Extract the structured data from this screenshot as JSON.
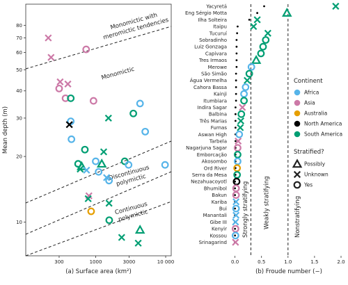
{
  "chart_data": [
    {
      "type": "scatter",
      "xlabel": "(a)  Surface area (km²)",
      "ylabel": "Mean depth (m)",
      "xscale": "log",
      "yscale": "log",
      "xlim": [
        100,
        12000
      ],
      "ylim": [
        7,
        100
      ],
      "xticks": [
        300,
        1000,
        3000,
        10000
      ],
      "xtick_labels": [
        "300",
        "1000",
        "3000",
        "10 000"
      ],
      "yticks": [
        10,
        20,
        30,
        40,
        50,
        60,
        70,
        80
      ],
      "ytick_labels": [
        "10",
        "20",
        "30",
        "40",
        "50",
        "60",
        "70",
        "80"
      ],
      "grid": false,
      "regions": [
        "Monomictic with\nmeromictic tendencies",
        "Monomictic",
        "Discontinuous\npolymictic",
        "Continuous\npolymictic"
      ],
      "points": [
        {
          "x": 210,
          "y": 70,
          "continent": "Asia",
          "stratified": "Unknown"
        },
        {
          "x": 230,
          "y": 57,
          "continent": "Asia",
          "stratified": "Unknown"
        },
        {
          "x": 310,
          "y": 44,
          "continent": "Asia",
          "stratified": "Unknown"
        },
        {
          "x": 300,
          "y": 41,
          "continent": "Asia",
          "stratified": "Yes"
        },
        {
          "x": 400,
          "y": 43,
          "continent": "Asia",
          "stratified": "Unknown"
        },
        {
          "x": 370,
          "y": 37,
          "continent": "Asia",
          "stratified": "Yes"
        },
        {
          "x": 730,
          "y": 62,
          "continent": "Asia",
          "stratified": "Yes"
        },
        {
          "x": 930,
          "y": 36,
          "continent": "Asia",
          "stratified": "Yes"
        },
        {
          "x": 440,
          "y": 37,
          "continent": "South America",
          "stratified": "Yes"
        },
        {
          "x": 440,
          "y": 29,
          "continent": "Africa",
          "stratified": "Yes"
        },
        {
          "x": 420,
          "y": 28,
          "continent": "North America",
          "stratified": "Unknown"
        },
        {
          "x": 450,
          "y": 24,
          "continent": "Africa",
          "stratified": "Yes"
        },
        {
          "x": 1520,
          "y": 30,
          "continent": "South America",
          "stratified": "Unknown"
        },
        {
          "x": 3450,
          "y": 31.5,
          "continent": "South America",
          "stratified": "Yes"
        },
        {
          "x": 4300,
          "y": 35,
          "continent": "Africa",
          "stratified": "Yes"
        },
        {
          "x": 5100,
          "y": 26,
          "continent": "Africa",
          "stratified": "Yes"
        },
        {
          "x": 700,
          "y": 21.5,
          "continent": "South America",
          "stratified": "Yes"
        },
        {
          "x": 1300,
          "y": 21,
          "continent": "South America",
          "stratified": "Unknown"
        },
        {
          "x": 560,
          "y": 18.5,
          "continent": "South America",
          "stratified": "Yes"
        },
        {
          "x": 630,
          "y": 18,
          "continent": "South America",
          "stratified": "Possibly"
        },
        {
          "x": 600,
          "y": 17.5,
          "continent": "South America",
          "stratified": "Unknown"
        },
        {
          "x": 740,
          "y": 17.3,
          "continent": "Africa",
          "stratified": "Unknown"
        },
        {
          "x": 1000,
          "y": 19,
          "continent": "Africa",
          "stratified": "Yes"
        },
        {
          "x": 1220,
          "y": 18.5,
          "continent": "South America",
          "stratified": "Possibly"
        },
        {
          "x": 1100,
          "y": 17,
          "continent": "Africa",
          "stratified": "Yes"
        },
        {
          "x": 1430,
          "y": 16,
          "continent": "Africa",
          "stratified": "Unknown"
        },
        {
          "x": 1550,
          "y": 15.5,
          "continent": "Africa",
          "stratified": "Yes"
        },
        {
          "x": 2600,
          "y": 19,
          "continent": "South America",
          "stratified": "Yes"
        },
        {
          "x": 2950,
          "y": 18.3,
          "continent": "Africa",
          "stratified": "Yes"
        },
        {
          "x": 9800,
          "y": 18.3,
          "continent": "Africa",
          "stratified": "Yes"
        },
        {
          "x": 800,
          "y": 13.2,
          "continent": "Asia",
          "stratified": "Unknown"
        },
        {
          "x": 780,
          "y": 12.8,
          "continent": "South America",
          "stratified": "Unknown"
        },
        {
          "x": 1550,
          "y": 12.2,
          "continent": "South America",
          "stratified": "Unknown"
        },
        {
          "x": 860,
          "y": 11.2,
          "continent": "Australia",
          "stratified": "Yes"
        },
        {
          "x": 1560,
          "y": 10.2,
          "continent": "South America",
          "stratified": "Yes"
        },
        {
          "x": 2350,
          "y": 8.5,
          "continent": "South America",
          "stratified": "Unknown"
        },
        {
          "x": 4300,
          "y": 9.2,
          "continent": "South America",
          "stratified": "Possibly"
        },
        {
          "x": 4050,
          "y": 8.0,
          "continent": "South America",
          "stratified": "Unknown"
        }
      ]
    },
    {
      "type": "scatter",
      "xlabel": "(b) Froude number (−)",
      "xlim": [
        -0.1,
        2.0
      ],
      "xticks": [
        0.0,
        0.5,
        1.0,
        1.5,
        2.0
      ],
      "xtick_labels": [
        "0.0",
        "0.5",
        "1.0",
        "1.5",
        "2.0"
      ],
      "grid": false,
      "regions": [
        "Strongly stratifying",
        "Weakly stratifying",
        "Nonstratifying"
      ],
      "thresholds": [
        0.3,
        1.0
      ],
      "categories": [
        "Yacyretá",
        "Eng Sérgio Motta",
        "Ilha Solteira",
        "Itaipu",
        "Tucuruí",
        "Sobradinho",
        "Luiz Gonzaga",
        "Capivara",
        "Tres Irmaos",
        "Merowe",
        "São Simão",
        "Água Vermelha",
        "Cahora Bassa",
        "Kainji",
        "Itumbiara",
        "Indira Sagar",
        "Balbina",
        "Três Marias",
        "Furnas",
        "Aswan High",
        "Tarbela",
        "Nagarjuna Sagar",
        "Emborcação",
        "Akosombo",
        "Ord River",
        "Serra da Mesa",
        "Nezahuacoyotl",
        "Bhumibol",
        "Bakun",
        "Kariba",
        "Bui",
        "Manantali",
        "Gibe III",
        "Kenyir",
        "Kossou",
        "Srinagarind"
      ],
      "values": [
        1.9,
        0.98,
        0.42,
        0.35,
        0.62,
        0.58,
        0.53,
        0.49,
        0.4,
        0.31,
        0.27,
        0.23,
        0.2,
        0.17,
        0.17,
        0.14,
        0.12,
        0.11,
        0.1,
        0.08,
        0.06,
        0.05,
        0.05,
        0.05,
        0.04,
        0.04,
        0.03,
        0.02,
        0.02,
        0.02,
        0.02,
        0.02,
        0.01,
        0.01,
        0.01,
        0.01
      ],
      "dot_values": [
        0.55,
        0.42,
        0.27,
        0.05,
        0.04,
        0.03,
        0.03,
        0.03,
        0.03,
        0.03,
        0.02,
        0.02,
        0.02,
        0.02,
        0.02,
        0.01,
        0.01,
        0.01,
        0.01,
        0.01,
        0.01,
        0.01,
        0.01,
        0.01,
        0.01,
        0.01,
        0.0,
        0.0,
        0.0,
        0.0,
        0.0,
        0.0,
        0.0,
        0.0,
        0.0,
        0.0
      ],
      "continent": [
        "South America",
        "South America",
        "South America",
        "South America",
        "South America",
        "South America",
        "South America",
        "South America",
        "South America",
        "Africa",
        "South America",
        "South America",
        "Africa",
        "Africa",
        "South America",
        "Asia",
        "South America",
        "South America",
        "South America",
        "Africa",
        "Asia",
        "Asia",
        "South America",
        "Africa",
        "Australia",
        "South America",
        "North America",
        "Asia",
        "Asia",
        "Africa",
        "Africa",
        "Africa",
        "Africa",
        "Asia",
        "Africa",
        "Asia"
      ],
      "stratified": [
        "Unknown",
        "Possibly",
        "Unknown",
        "Unknown",
        "Unknown",
        "Yes",
        "Yes",
        "Yes",
        "Possibly",
        "Yes",
        "Yes",
        "Unknown",
        "Yes",
        "Yes",
        "Yes",
        "Unknown",
        "Yes",
        "Unknown",
        "Unknown",
        "Yes",
        "Unknown",
        "Yes",
        "Yes",
        "Yes",
        "Yes",
        "Yes",
        "Yes",
        "Yes",
        "Yes",
        "Unknown",
        "Yes",
        "Unknown",
        "Unknown",
        "Yes",
        "Yes",
        "Unknown"
      ]
    }
  ],
  "legend": {
    "continent_title": "Continent",
    "continents": [
      {
        "name": "Africa",
        "color": "#56B4E9"
      },
      {
        "name": "Asia",
        "color": "#CC79A7"
      },
      {
        "name": "Australia",
        "color": "#E69F00"
      },
      {
        "name": "North America",
        "color": "#000000"
      },
      {
        "name": "South America",
        "color": "#009E73"
      }
    ],
    "stratified_title": "Stratified?",
    "stratified": [
      {
        "name": "Possibly",
        "marker": "triangle"
      },
      {
        "name": "Unknown",
        "marker": "cross"
      },
      {
        "name": "Yes",
        "marker": "circle"
      }
    ]
  }
}
